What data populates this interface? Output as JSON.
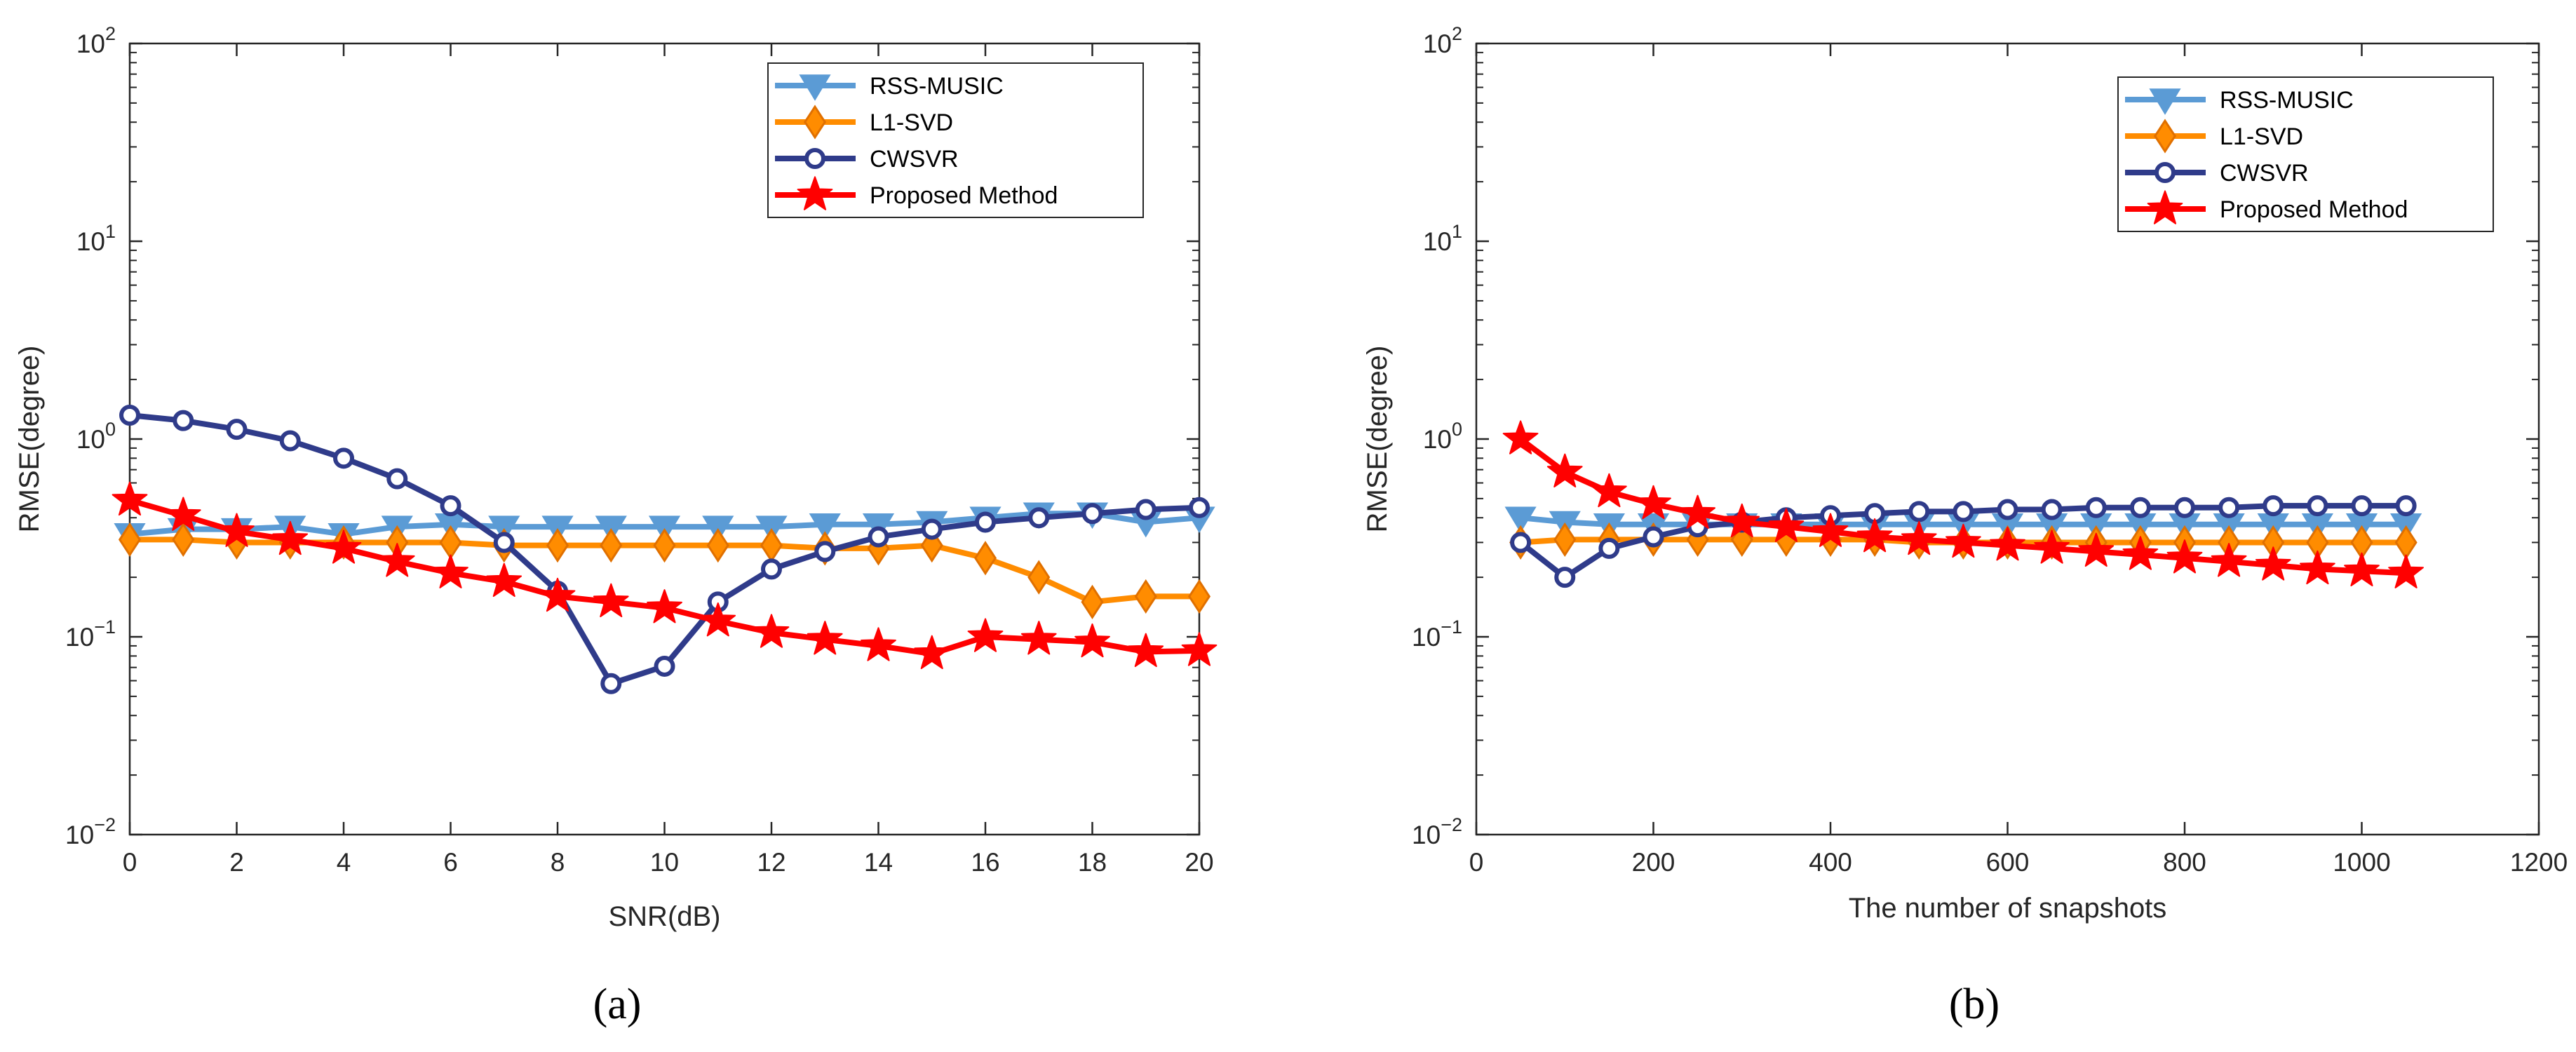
{
  "chart_data": [
    {
      "type": "line",
      "panel_label": "(a)",
      "xlabel": "SNR(dB)",
      "ylabel": "RMSE(degree)",
      "xlim": [
        0,
        20
      ],
      "ylim": [
        0.01,
        100
      ],
      "yscale": "log",
      "xticks": [
        0,
        2,
        4,
        6,
        8,
        10,
        12,
        14,
        16,
        18,
        20
      ],
      "xtick_labels": [
        "0",
        "2",
        "4",
        "6",
        "8",
        "10",
        "12",
        "14",
        "16",
        "18",
        "20"
      ],
      "yticks": [
        0.01,
        0.1,
        1,
        10,
        100
      ],
      "ytick_labels": [
        {
          "base": "10",
          "exp": "−2"
        },
        {
          "base": "10",
          "exp": "−1"
        },
        {
          "base": "10",
          "exp": "0"
        },
        {
          "base": "10",
          "exp": "1"
        },
        {
          "base": "10",
          "exp": "2"
        }
      ],
      "legend_position": "top-right",
      "x": [
        0,
        1,
        2,
        3,
        4,
        5,
        6,
        7,
        8,
        9,
        10,
        11,
        12,
        13,
        14,
        15,
        16,
        17,
        18,
        19,
        20
      ],
      "series": [
        {
          "name": "RSS-MUSIC",
          "color": "#5b9bd5",
          "marker": "triangle-down",
          "values": [
            0.33,
            0.35,
            0.35,
            0.36,
            0.33,
            0.36,
            0.37,
            0.36,
            0.36,
            0.36,
            0.36,
            0.36,
            0.36,
            0.37,
            0.37,
            0.38,
            0.4,
            0.42,
            0.42,
            0.38,
            0.4
          ]
        },
        {
          "name": "L1-SVD",
          "color": "#ff8c00",
          "marker": "diamond",
          "values": [
            0.31,
            0.31,
            0.3,
            0.3,
            0.3,
            0.3,
            0.3,
            0.29,
            0.29,
            0.29,
            0.29,
            0.29,
            0.29,
            0.28,
            0.28,
            0.29,
            0.25,
            0.2,
            0.15,
            0.16,
            0.16
          ]
        },
        {
          "name": "CWSVR",
          "color": "#2f3b8a",
          "marker": "circle",
          "values": [
            1.32,
            1.24,
            1.12,
            0.98,
            0.8,
            0.63,
            0.46,
            0.3,
            0.17,
            0.058,
            0.071,
            0.15,
            0.22,
            0.27,
            0.32,
            0.35,
            0.38,
            0.4,
            0.42,
            0.44,
            0.45
          ]
        },
        {
          "name": "Proposed Method",
          "color": "#ff0000",
          "marker": "star",
          "values": [
            0.49,
            0.41,
            0.34,
            0.31,
            0.28,
            0.24,
            0.21,
            0.19,
            0.16,
            0.15,
            0.14,
            0.12,
            0.105,
            0.097,
            0.09,
            0.082,
            0.1,
            0.097,
            0.094,
            0.084,
            0.085
          ]
        }
      ]
    },
    {
      "type": "line",
      "panel_label": "(b)",
      "xlabel": "The number of snapshots",
      "ylabel": "RMSE(degree)",
      "xlim": [
        0,
        1200
      ],
      "ylim": [
        0.01,
        100
      ],
      "yscale": "log",
      "xticks": [
        0,
        200,
        400,
        600,
        800,
        1000,
        1200
      ],
      "xtick_labels": [
        "0",
        "200",
        "400",
        "600",
        "800",
        "1000",
        "1200"
      ],
      "yticks": [
        0.01,
        0.1,
        1,
        10,
        100
      ],
      "ytick_labels": [
        {
          "base": "10",
          "exp": "−2"
        },
        {
          "base": "10",
          "exp": "−1"
        },
        {
          "base": "10",
          "exp": "0"
        },
        {
          "base": "10",
          "exp": "1"
        },
        {
          "base": "10",
          "exp": "2"
        }
      ],
      "legend_position": "top-right",
      "x": [
        50,
        100,
        150,
        200,
        250,
        300,
        350,
        400,
        450,
        500,
        550,
        600,
        650,
        700,
        750,
        800,
        850,
        900,
        950,
        1000,
        1050
      ],
      "series": [
        {
          "name": "RSS-MUSIC",
          "color": "#5b9bd5",
          "marker": "triangle-down",
          "values": [
            0.4,
            0.38,
            0.37,
            0.37,
            0.37,
            0.37,
            0.37,
            0.37,
            0.37,
            0.37,
            0.37,
            0.37,
            0.37,
            0.37,
            0.37,
            0.37,
            0.37,
            0.37,
            0.37,
            0.37,
            0.37
          ]
        },
        {
          "name": "L1-SVD",
          "color": "#ff8c00",
          "marker": "diamond",
          "values": [
            0.3,
            0.31,
            0.31,
            0.31,
            0.31,
            0.31,
            0.31,
            0.31,
            0.31,
            0.3,
            0.3,
            0.3,
            0.3,
            0.3,
            0.3,
            0.3,
            0.3,
            0.3,
            0.3,
            0.3,
            0.3
          ]
        },
        {
          "name": "CWSVR",
          "color": "#2f3b8a",
          "marker": "circle",
          "values": [
            0.3,
            0.2,
            0.28,
            0.32,
            0.36,
            0.38,
            0.4,
            0.41,
            0.42,
            0.43,
            0.43,
            0.44,
            0.44,
            0.45,
            0.45,
            0.45,
            0.45,
            0.46,
            0.46,
            0.46,
            0.46
          ]
        },
        {
          "name": "Proposed Method",
          "color": "#ff0000",
          "marker": "star",
          "values": [
            1.0,
            0.68,
            0.54,
            0.47,
            0.42,
            0.38,
            0.36,
            0.34,
            0.32,
            0.31,
            0.3,
            0.29,
            0.28,
            0.27,
            0.26,
            0.25,
            0.24,
            0.23,
            0.22,
            0.215,
            0.21
          ]
        }
      ]
    }
  ]
}
